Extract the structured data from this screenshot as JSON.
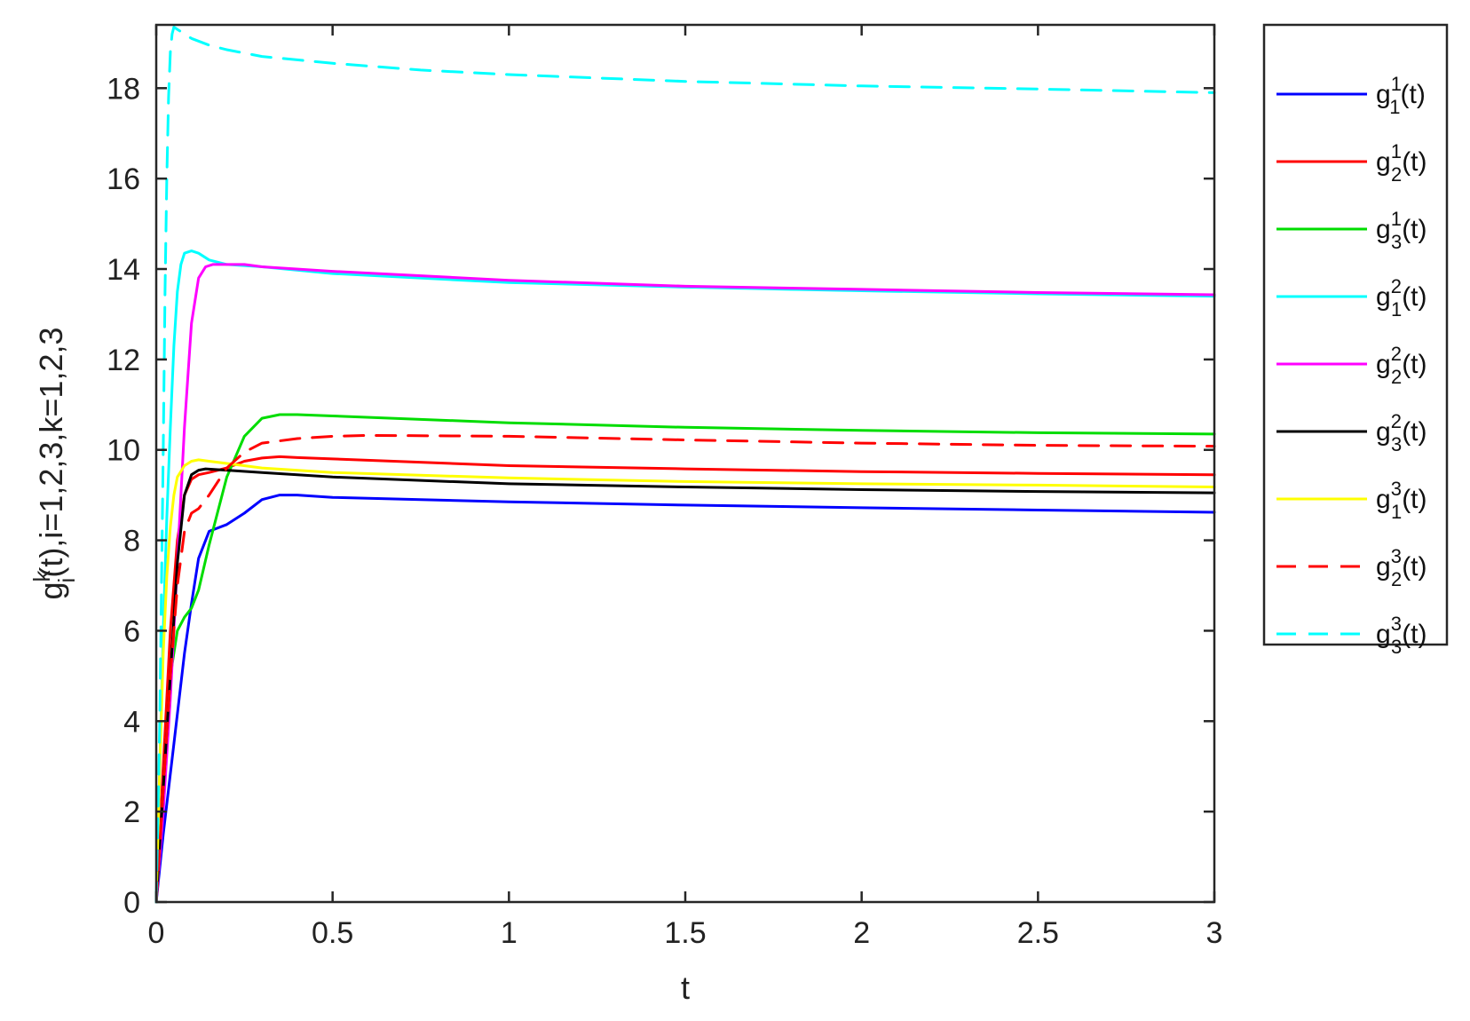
{
  "chart_data": {
    "type": "line",
    "title": "",
    "xlabel": "t",
    "ylabel": {
      "base": "g",
      "sup": "k",
      "sub": "i",
      "rest": "(t),i=1,2,3,k=1,2,3"
    },
    "xlim": [
      0,
      3
    ],
    "ylim": [
      0,
      19.4
    ],
    "xticks": [
      0,
      0.5,
      1,
      1.5,
      2,
      2.5,
      3
    ],
    "xtick_labels": [
      "0",
      "0.5",
      "1",
      "1.5",
      "2",
      "2.5",
      "3"
    ],
    "yticks": [
      0,
      2,
      4,
      6,
      8,
      10,
      12,
      14,
      16,
      18
    ],
    "ytick_labels": [
      "0",
      "2",
      "4",
      "6",
      "8",
      "10",
      "12",
      "14",
      "16",
      "18"
    ],
    "grid": false,
    "legend_position": "outside-right",
    "series": [
      {
        "name": "g11",
        "label": {
          "base": "g",
          "sup": "1",
          "sub": "1",
          "rest": "(t)"
        },
        "color": "#0000ff",
        "dash": "solid",
        "x": [
          0,
          0.02,
          0.05,
          0.08,
          0.1,
          0.12,
          0.15,
          0.2,
          0.25,
          0.3,
          0.35,
          0.4,
          0.5,
          0.75,
          1,
          1.5,
          2,
          2.5,
          3
        ],
        "y": [
          0,
          1.5,
          3.5,
          5.5,
          6.6,
          7.6,
          8.2,
          8.35,
          8.6,
          8.9,
          9.0,
          9.0,
          8.95,
          8.9,
          8.85,
          8.78,
          8.72,
          8.67,
          8.62
        ]
      },
      {
        "name": "g21",
        "label": {
          "base": "g",
          "sup": "1",
          "sub": "2",
          "rest": "(t)"
        },
        "color": "#ff0000",
        "dash": "solid",
        "x": [
          0,
          0.02,
          0.04,
          0.06,
          0.08,
          0.1,
          0.12,
          0.15,
          0.2,
          0.25,
          0.3,
          0.35,
          0.4,
          0.5,
          1,
          1.5,
          2,
          2.5,
          3
        ],
        "y": [
          0,
          3,
          6,
          8,
          9.0,
          9.35,
          9.45,
          9.5,
          9.6,
          9.75,
          9.82,
          9.85,
          9.83,
          9.8,
          9.65,
          9.58,
          9.52,
          9.48,
          9.45
        ]
      },
      {
        "name": "g31",
        "label": {
          "base": "g",
          "sup": "1",
          "sub": "3",
          "rest": "(t)"
        },
        "color": "#00dd00",
        "dash": "solid",
        "x": [
          0,
          0.02,
          0.04,
          0.06,
          0.08,
          0.1,
          0.12,
          0.15,
          0.2,
          0.25,
          0.3,
          0.35,
          0.4,
          0.5,
          1,
          1.5,
          2,
          2.5,
          3
        ],
        "y": [
          0,
          2.5,
          5.0,
          6.0,
          6.3,
          6.5,
          6.9,
          7.9,
          9.4,
          10.3,
          10.7,
          10.78,
          10.78,
          10.75,
          10.6,
          10.5,
          10.43,
          10.38,
          10.35
        ]
      },
      {
        "name": "g12",
        "label": {
          "base": "g",
          "sup": "2",
          "sub": "1",
          "rest": "(t)"
        },
        "color": "#00ffff",
        "dash": "solid",
        "x": [
          0,
          0.01,
          0.02,
          0.03,
          0.04,
          0.05,
          0.06,
          0.07,
          0.08,
          0.1,
          0.12,
          0.15,
          0.2,
          0.3,
          0.5,
          1,
          1.5,
          2,
          2.5,
          3
        ],
        "y": [
          0,
          3,
          6,
          8.5,
          10.5,
          12.3,
          13.5,
          14.1,
          14.35,
          14.4,
          14.35,
          14.2,
          14.1,
          14.05,
          13.9,
          13.7,
          13.6,
          13.52,
          13.45,
          13.4
        ]
      },
      {
        "name": "g22",
        "label": {
          "base": "g",
          "sup": "2",
          "sub": "2",
          "rest": "(t)"
        },
        "color": "#ff00ff",
        "dash": "solid",
        "x": [
          0,
          0.02,
          0.04,
          0.06,
          0.08,
          0.1,
          0.12,
          0.14,
          0.16,
          0.2,
          0.25,
          0.3,
          0.5,
          1,
          1.5,
          2,
          2.5,
          3
        ],
        "y": [
          0,
          2,
          4.5,
          7.5,
          10.5,
          12.8,
          13.8,
          14.05,
          14.1,
          14.1,
          14.1,
          14.05,
          13.95,
          13.75,
          13.62,
          13.55,
          13.48,
          13.43
        ]
      },
      {
        "name": "g32",
        "label": {
          "base": "g",
          "sup": "2",
          "sub": "3",
          "rest": "(t)"
        },
        "color": "#000000",
        "dash": "solid",
        "x": [
          0,
          0.02,
          0.04,
          0.06,
          0.08,
          0.1,
          0.12,
          0.14,
          0.2,
          0.3,
          0.5,
          1,
          1.5,
          2,
          2.5,
          3
        ],
        "y": [
          0,
          2.5,
          5,
          7.5,
          9.0,
          9.45,
          9.55,
          9.58,
          9.55,
          9.5,
          9.4,
          9.25,
          9.18,
          9.12,
          9.08,
          9.05
        ]
      },
      {
        "name": "g13",
        "label": {
          "base": "g",
          "sup": "3",
          "sub": "1",
          "rest": "(t)"
        },
        "color": "#ffff00",
        "dash": "solid",
        "x": [
          0,
          0.01,
          0.02,
          0.03,
          0.04,
          0.05,
          0.06,
          0.08,
          0.1,
          0.12,
          0.15,
          0.2,
          0.3,
          0.5,
          1,
          1.5,
          2,
          2.5,
          3
        ],
        "y": [
          0,
          3,
          5.5,
          7.2,
          8.3,
          9.0,
          9.4,
          9.65,
          9.75,
          9.78,
          9.75,
          9.7,
          9.6,
          9.5,
          9.38,
          9.3,
          9.25,
          9.22,
          9.18
        ]
      },
      {
        "name": "g23",
        "label": {
          "base": "g",
          "sup": "3",
          "sub": "2",
          "rest": "(t)"
        },
        "color": "#ff0000",
        "dash": "dashed",
        "x": [
          0,
          0.02,
          0.04,
          0.06,
          0.08,
          0.1,
          0.12,
          0.15,
          0.2,
          0.25,
          0.3,
          0.4,
          0.5,
          0.6,
          1,
          1.5,
          2,
          2.5,
          3
        ],
        "y": [
          0,
          2.5,
          5,
          7,
          8.2,
          8.6,
          8.7,
          9.0,
          9.6,
          9.95,
          10.15,
          10.25,
          10.3,
          10.32,
          10.3,
          10.22,
          10.15,
          10.1,
          10.08
        ]
      },
      {
        "name": "g33",
        "label": {
          "base": "g",
          "sup": "3",
          "sub": "3",
          "rest": "(t)"
        },
        "color": "#00ffff",
        "dash": "dashed",
        "x": [
          0,
          0.01,
          0.02,
          0.025,
          0.03,
          0.035,
          0.04,
          0.045,
          0.05,
          0.06,
          0.08,
          0.1,
          0.15,
          0.2,
          0.3,
          0.5,
          0.75,
          1,
          1.5,
          2,
          2.5,
          3
        ],
        "y": [
          0,
          4,
          10,
          13.5,
          16.0,
          17.8,
          18.8,
          19.2,
          19.35,
          19.3,
          19.2,
          19.1,
          18.95,
          18.85,
          18.7,
          18.55,
          18.4,
          18.3,
          18.15,
          18.05,
          17.98,
          17.9
        ]
      }
    ]
  }
}
